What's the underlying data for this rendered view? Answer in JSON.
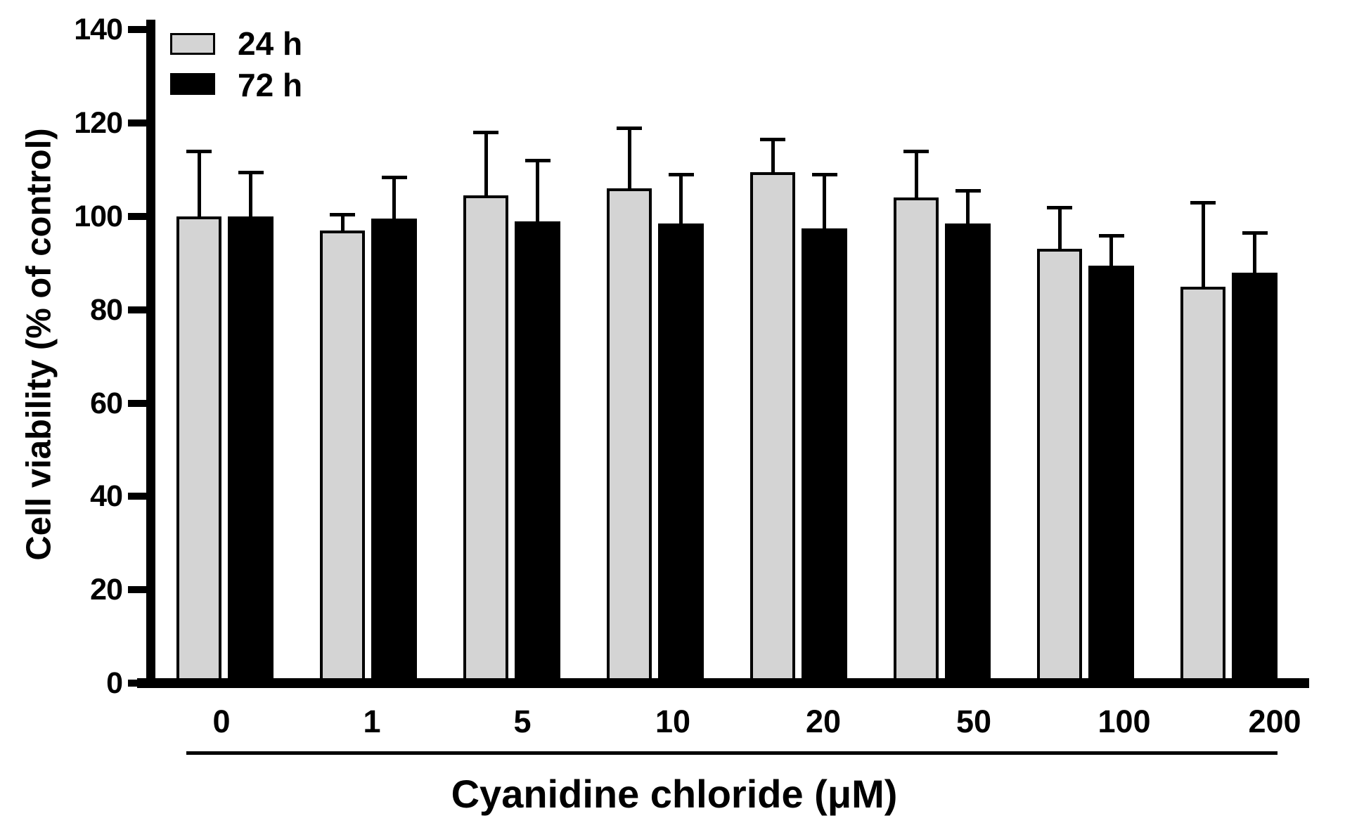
{
  "chart_data": {
    "type": "bar",
    "categories": [
      "0",
      "1",
      "5",
      "10",
      "20",
      "50",
      "100",
      "200"
    ],
    "series": [
      {
        "name": "24 h",
        "color": "#d4d4d4",
        "values": [
          100,
          97,
          104.5,
          106,
          109.5,
          104,
          93,
          85
        ],
        "errors_upper_sd": [
          14,
          3.5,
          13.5,
          13,
          7,
          10,
          9,
          18
        ]
      },
      {
        "name": "72 h",
        "color": "#000000",
        "values": [
          100,
          99.5,
          99,
          98.5,
          97.5,
          98.5,
          89.5,
          88
        ],
        "errors_upper_sd": [
          9.5,
          9,
          13,
          10.5,
          11.5,
          7,
          6.5,
          8.5
        ]
      }
    ],
    "xlabel": "Cyanidine chloride (μM)",
    "ylabel": "Cell viability (% of control)",
    "ylim": [
      0,
      140
    ],
    "yticks": [
      0,
      20,
      40,
      60,
      80,
      100,
      120,
      140
    ],
    "grid": false,
    "legend_position": "top-left",
    "error_bars": "upper-only",
    "bar_outline_color": "#000000",
    "axis_color": "#000000"
  }
}
